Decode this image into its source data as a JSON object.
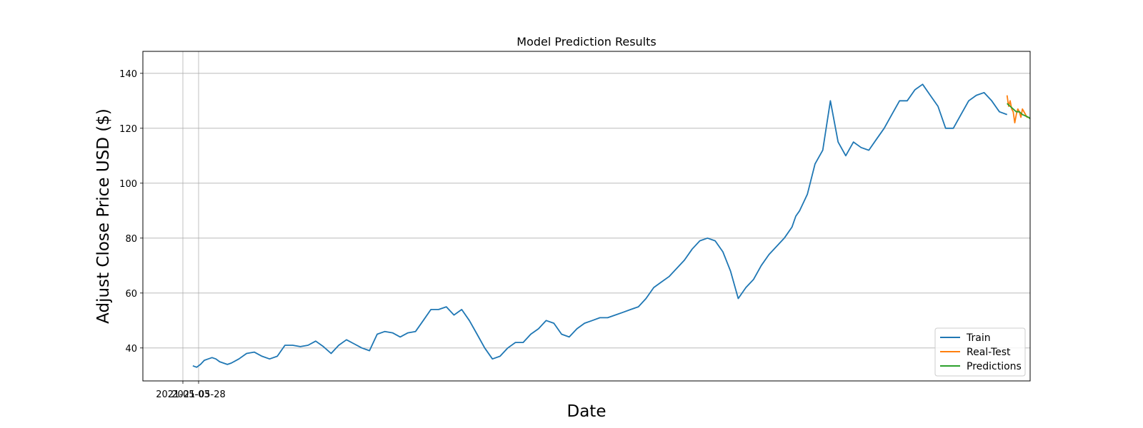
{
  "chart_data": {
    "type": "line",
    "title": "Model Prediction Results",
    "xlabel": "Date",
    "ylabel": "Adjust Close Price USD ($)",
    "x_tick_labels": [
      "2021-05-03",
      "2021-05-28"
    ],
    "y_ticks": [
      40,
      60,
      80,
      100,
      120,
      140
    ],
    "ylim": [
      28,
      148
    ],
    "grid": true,
    "legend_position": "lower right",
    "x_units": "trading days from series start (approximate)",
    "x_range": [
      -65,
      1090
    ],
    "series": [
      {
        "name": "Train",
        "color": "#1f77b4",
        "x": [
          0,
          5,
          10,
          15,
          20,
          25,
          30,
          35,
          40,
          45,
          50,
          60,
          70,
          80,
          90,
          100,
          110,
          120,
          130,
          140,
          150,
          160,
          170,
          180,
          190,
          200,
          210,
          220,
          230,
          240,
          250,
          260,
          270,
          280,
          290,
          300,
          310,
          320,
          330,
          340,
          350,
          360,
          370,
          380,
          390,
          400,
          410,
          420,
          430,
          440,
          450,
          460,
          470,
          480,
          490,
          500,
          510,
          520,
          530,
          540,
          550,
          560,
          570,
          580,
          590,
          600,
          610,
          620,
          630,
          640,
          650,
          660,
          670,
          680,
          690,
          700,
          710,
          720,
          730,
          740,
          750,
          760,
          770,
          780,
          785,
          790,
          795,
          800,
          810,
          820,
          830,
          840,
          850,
          860,
          870,
          880,
          890,
          900,
          910,
          920,
          930,
          940,
          950,
          960,
          970,
          980,
          990,
          1000,
          1010,
          1020,
          1030,
          1040,
          1050,
          1060
        ],
        "y": [
          33.5,
          33,
          34,
          35.5,
          36,
          36.5,
          36,
          35,
          34.5,
          34,
          34.5,
          36,
          38,
          38.5,
          37,
          36,
          37,
          41,
          41,
          40.5,
          41,
          42.5,
          40.5,
          38,
          41,
          43,
          41.5,
          40,
          39,
          45,
          46,
          45.5,
          44,
          45.5,
          46,
          50,
          54,
          54,
          55,
          52,
          54,
          50,
          45,
          40,
          36,
          37,
          40,
          42,
          42,
          45,
          47,
          50,
          49,
          45,
          44,
          47,
          49,
          50,
          51,
          51,
          52,
          53,
          54,
          55,
          58,
          62,
          64,
          66,
          69,
          72,
          76,
          79,
          80,
          79,
          75,
          68,
          58,
          62,
          65,
          70,
          74,
          77,
          80,
          84,
          88,
          90,
          93,
          96,
          107,
          112,
          130,
          115,
          110,
          115,
          113,
          112,
          116,
          120,
          125,
          130,
          130,
          134,
          136,
          132,
          128,
          120,
          120,
          125,
          130,
          132,
          133,
          130,
          126,
          125
        ]
      },
      {
        "name": "Real-Test",
        "color": "#ff7f0e",
        "x": [
          1060,
          1062,
          1064,
          1066,
          1068,
          1070,
          1072,
          1074,
          1076,
          1078,
          1080,
          1082,
          1084,
          1086,
          1088,
          1090
        ],
        "y": [
          132,
          128,
          130,
          127,
          126,
          122,
          125,
          127,
          126,
          124,
          127,
          126,
          125,
          124,
          124,
          123.5
        ]
      },
      {
        "name": "Predictions",
        "color": "#2ca02c",
        "x": [
          1060,
          1064,
          1068,
          1072,
          1076,
          1080,
          1084,
          1088,
          1090
        ],
        "y": [
          129,
          128,
          127,
          126,
          126,
          125,
          124.5,
          124,
          123.5
        ]
      }
    ]
  }
}
